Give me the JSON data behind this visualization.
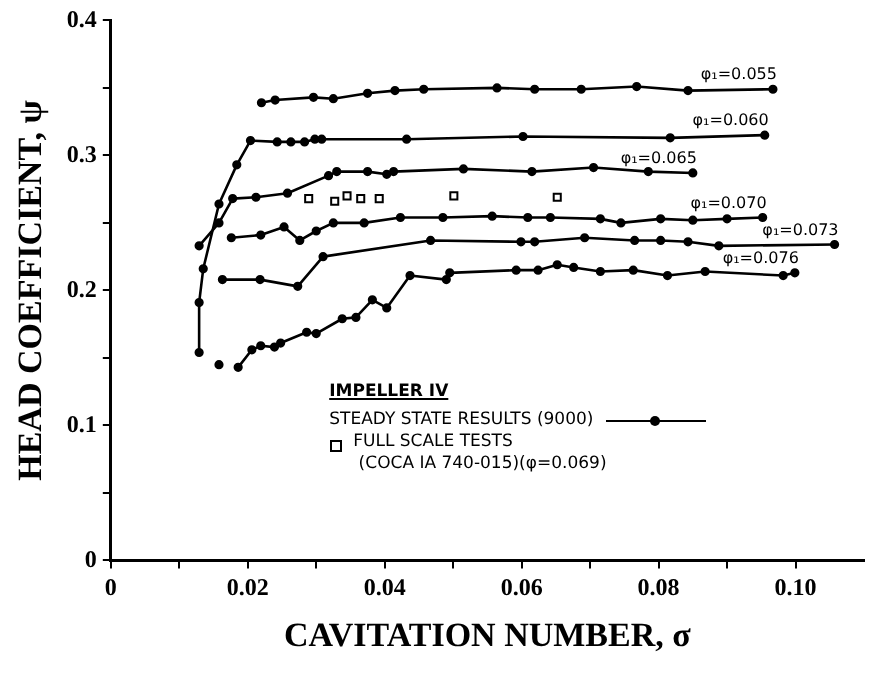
{
  "chart_data": {
    "type": "line",
    "xlabel": "CAVITATION NUMBER, σ",
    "ylabel": "HEAD COEFFICIENT, ψ",
    "legend_title": "IMPELLER IV",
    "annotations": [
      "STEADY STATE RESULTS (9000)"
    ],
    "xlim": [
      0,
      0.11
    ],
    "ylim": [
      0,
      0.4
    ],
    "xticks": [
      0,
      {
        "value": 0.01,
        "label": null
      },
      0.02,
      {
        "value": 0.03,
        "label": null
      },
      0.04,
      {
        "value": 0.05,
        "label": null
      },
      0.06,
      {
        "value": 0.07,
        "label": null
      },
      0.08,
      {
        "value": 0.09,
        "label": null
      },
      {
        "value": 0.1,
        "label": "0.10"
      }
    ],
    "yticks": [
      0,
      {
        "value": 0.05,
        "label": null
      },
      0.1,
      {
        "value": 0.15,
        "label": null
      },
      0.2,
      {
        "value": 0.25,
        "label": null
      },
      0.3,
      {
        "value": 0.35,
        "label": null
      },
      0.4
    ],
    "grid": false,
    "legend": "bottom right",
    "marker": "circle",
    "line_style": "solid",
    "series": [
      {
        "name": "φ₁=0.055",
        "color": "#000000",
        "x": [
          0.022,
          0.024,
          0.0296,
          0.0325,
          0.0375,
          0.0415,
          0.0457,
          0.0564,
          0.0619,
          0.0687,
          0.0768,
          0.0843,
          0.0967
        ],
        "values": [
          0.339,
          0.341,
          0.343,
          0.342,
          0.346,
          0.348,
          0.349,
          0.35,
          0.349,
          0.349,
          0.351,
          0.348,
          0.349
        ]
      },
      {
        "name": "φ₁=0.060",
        "color": "#000000",
        "x": [
          0.0129,
          0.0129,
          0.0135,
          0.0158,
          0.0184,
          0.0204,
          0.0243,
          0.0263,
          0.0283,
          0.0298,
          0.0308,
          0.0432,
          0.0602,
          0.0817,
          0.0955
        ],
        "values": [
          0.154,
          0.191,
          0.216,
          0.264,
          0.293,
          0.311,
          0.31,
          0.31,
          0.31,
          0.312,
          0.312,
          0.312,
          0.314,
          0.313,
          0.315
        ]
      },
      {
        "name": "φ₁=0.065",
        "color": "#000000",
        "x": [
          0.0129,
          0.0158,
          0.0178,
          0.0212,
          0.0258,
          0.0318,
          0.033,
          0.0375,
          0.0403,
          0.0413,
          0.0515,
          0.0615,
          0.0705,
          0.0785,
          0.085
        ],
        "values": [
          0.233,
          0.25,
          0.268,
          0.269,
          0.272,
          0.285,
          0.288,
          0.288,
          0.286,
          0.288,
          0.29,
          0.288,
          0.291,
          0.288,
          0.287
        ]
      },
      {
        "name": "φ₁=0.070",
        "color": "#000000",
        "x": [
          0.0176,
          0.0219,
          0.0253,
          0.0276,
          0.03,
          0.0325,
          0.037,
          0.0423,
          0.0485,
          0.0557,
          0.0609,
          0.0642,
          0.0715,
          0.0745,
          0.0803,
          0.085,
          0.09,
          0.0952
        ],
        "values": [
          0.239,
          0.241,
          0.247,
          0.237,
          0.244,
          0.25,
          0.25,
          0.254,
          0.254,
          0.255,
          0.254,
          0.254,
          0.253,
          0.25,
          0.253,
          0.252,
          0.253,
          0.254
        ]
      },
      {
        "name": "φ₁=0.073",
        "color": "#000000",
        "x": [
          0.0163,
          0.0218,
          0.0273,
          0.031,
          0.0467,
          0.0599,
          0.0619,
          0.0692,
          0.0765,
          0.0803,
          0.0843,
          0.0888,
          0.1057
        ],
        "values": [
          0.208,
          0.208,
          0.203,
          0.225,
          0.237,
          0.236,
          0.236,
          0.239,
          0.237,
          0.237,
          0.236,
          0.233,
          0.234
        ]
      },
      {
        "name": "φ₁=0.076",
        "color": "#000000",
        "x": [
          0.0186,
          0.0206,
          0.0219,
          0.0239,
          0.0248,
          0.0286,
          0.03,
          0.0338,
          0.0358,
          0.0382,
          0.0403,
          0.0437,
          0.049,
          0.0495,
          0.0592,
          0.0624,
          0.0652,
          0.0676,
          0.0715,
          0.0763,
          0.0813,
          0.0868,
          0.0982,
          0.0999
        ],
        "values": [
          0.143,
          0.156,
          0.159,
          0.158,
          0.161,
          0.169,
          0.168,
          0.179,
          0.18,
          0.193,
          0.187,
          0.211,
          0.208,
          0.213,
          0.215,
          0.215,
          0.219,
          0.217,
          0.214,
          0.215,
          0.211,
          0.214,
          0.211,
          0.213
        ]
      },
      {
        "type": "scatter",
        "marker": "circle",
        "color": "#000000",
        "x": [
          0.0158
        ],
        "values": [
          0.145
        ]
      },
      {
        "type": "scatter",
        "marker": "square",
        "name": "FULL SCALE TESTS (COCA IA 740-015)(φ=0.069)",
        "color": "#000000",
        "x": [
          0.0289,
          0.0327,
          0.0345,
          0.0365,
          0.0392,
          0.0501,
          0.0652
        ],
        "values": [
          0.268,
          0.266,
          0.27,
          0.268,
          0.268,
          0.27,
          0.269
        ]
      }
    ]
  }
}
